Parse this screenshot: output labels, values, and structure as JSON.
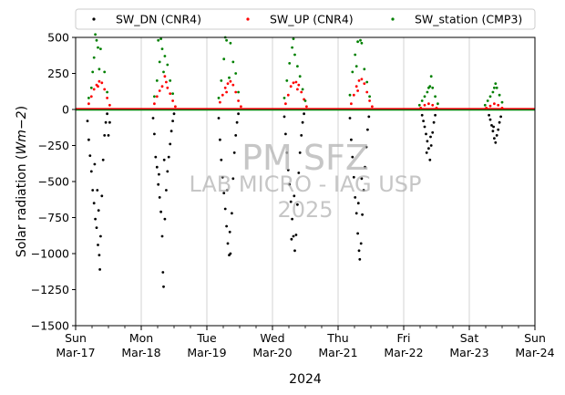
{
  "chart_data": {
    "type": "scatter",
    "title": "",
    "ylabel": "Solar radiation (Wm−2)",
    "ylabel_parts": {
      "main": "Solar radiation (",
      "unit": "Wm−2",
      "end": ")"
    },
    "xlabel": "2024",
    "ylim": [
      -1500,
      500
    ],
    "xlim": [
      0,
      7
    ],
    "y_ticks": [
      -1500,
      -1250,
      -1000,
      -750,
      -500,
      -250,
      0,
      250,
      500
    ],
    "y_tick_labels": [
      "−1500",
      "−1250",
      "−1000",
      "−750",
      "−500",
      "−250",
      "0",
      "250",
      "500"
    ],
    "x_tick_days": [
      0,
      1,
      2,
      3,
      4,
      5,
      6,
      7
    ],
    "x_tick_labels": [
      [
        "Sun",
        "Mar-17"
      ],
      [
        "Mon",
        "Mar-18"
      ],
      [
        "Tue",
        "Mar-19"
      ],
      [
        "Wed",
        "Mar-20"
      ],
      [
        "Thu",
        "Mar-21"
      ],
      [
        "Fri",
        "Mar-22"
      ],
      [
        "Sat",
        "Mar-23"
      ],
      [
        "Sun",
        "Mar-24"
      ]
    ],
    "vertical_grid": true,
    "zero_line": true,
    "legend_placement": "top, above plot",
    "series": [
      {
        "name": "SW_DN (CNR4)",
        "color": "#000000",
        "points": [
          [
            0.18,
            -80
          ],
          [
            0.2,
            -210
          ],
          [
            0.22,
            -320
          ],
          [
            0.24,
            -430
          ],
          [
            0.26,
            -560
          ],
          [
            0.28,
            -650
          ],
          [
            0.3,
            -760
          ],
          [
            0.32,
            -820
          ],
          [
            0.34,
            -940
          ],
          [
            0.36,
            -1010
          ],
          [
            0.37,
            -1110
          ],
          [
            0.38,
            -880
          ],
          [
            0.4,
            -600
          ],
          [
            0.42,
            -350
          ],
          [
            0.44,
            -180
          ],
          [
            0.46,
            -90
          ],
          [
            0.48,
            -30
          ],
          [
            0.5,
            -180
          ],
          [
            0.52,
            -90
          ],
          [
            0.35,
            -700
          ],
          [
            0.29,
            -380
          ],
          [
            0.33,
            -560
          ],
          [
            1.18,
            -60
          ],
          [
            1.2,
            -170
          ],
          [
            1.22,
            -330
          ],
          [
            1.24,
            -400
          ],
          [
            1.26,
            -520
          ],
          [
            1.28,
            -610
          ],
          [
            1.3,
            -710
          ],
          [
            1.32,
            -880
          ],
          [
            1.33,
            -1130
          ],
          [
            1.34,
            -1230
          ],
          [
            1.36,
            -760
          ],
          [
            1.38,
            -560
          ],
          [
            1.4,
            -430
          ],
          [
            1.42,
            -330
          ],
          [
            1.44,
            -240
          ],
          [
            1.46,
            -150
          ],
          [
            1.48,
            -80
          ],
          [
            1.5,
            -30
          ],
          [
            1.27,
            -450
          ],
          [
            1.35,
            -350
          ],
          [
            2.18,
            -60
          ],
          [
            2.2,
            -210
          ],
          [
            2.22,
            -350
          ],
          [
            2.24,
            -470
          ],
          [
            2.26,
            -580
          ],
          [
            2.28,
            -690
          ],
          [
            2.3,
            -810
          ],
          [
            2.32,
            -930
          ],
          [
            2.34,
            -1010
          ],
          [
            2.36,
            -1000
          ],
          [
            2.38,
            -720
          ],
          [
            2.4,
            -480
          ],
          [
            2.42,
            -300
          ],
          [
            2.44,
            -180
          ],
          [
            2.46,
            -90
          ],
          [
            2.48,
            -30
          ],
          [
            2.31,
            -560
          ],
          [
            2.35,
            -850
          ],
          [
            3.18,
            -50
          ],
          [
            3.2,
            -170
          ],
          [
            3.22,
            -300
          ],
          [
            3.24,
            -420
          ],
          [
            3.26,
            -520
          ],
          [
            3.28,
            -640
          ],
          [
            3.3,
            -760
          ],
          [
            3.32,
            -880
          ],
          [
            3.34,
            -980
          ],
          [
            3.36,
            -870
          ],
          [
            3.38,
            -660
          ],
          [
            3.4,
            -440
          ],
          [
            3.42,
            -300
          ],
          [
            3.44,
            -180
          ],
          [
            3.46,
            -90
          ],
          [
            3.48,
            -30
          ],
          [
            3.33,
            -600
          ],
          [
            3.29,
            -900
          ],
          [
            4.18,
            -60
          ],
          [
            4.2,
            -210
          ],
          [
            4.22,
            -330
          ],
          [
            4.24,
            -470
          ],
          [
            4.26,
            -610
          ],
          [
            4.28,
            -720
          ],
          [
            4.3,
            -860
          ],
          [
            4.32,
            -980
          ],
          [
            4.33,
            -1040
          ],
          [
            4.35,
            -930
          ],
          [
            4.37,
            -730
          ],
          [
            4.39,
            -560
          ],
          [
            4.41,
            -400
          ],
          [
            4.43,
            -260
          ],
          [
            4.45,
            -140
          ],
          [
            4.47,
            -50
          ],
          [
            4.31,
            -650
          ],
          [
            4.36,
            -480
          ],
          [
            5.28,
            -40
          ],
          [
            5.3,
            -80
          ],
          [
            5.32,
            -120
          ],
          [
            5.34,
            -170
          ],
          [
            5.36,
            -220
          ],
          [
            5.38,
            -270
          ],
          [
            5.4,
            -350
          ],
          [
            5.42,
            -250
          ],
          [
            5.44,
            -160
          ],
          [
            5.46,
            -90
          ],
          [
            5.48,
            -40
          ],
          [
            5.35,
            -300
          ],
          [
            5.41,
            -190
          ],
          [
            6.3,
            -40
          ],
          [
            6.32,
            -70
          ],
          [
            6.34,
            -110
          ],
          [
            6.36,
            -150
          ],
          [
            6.38,
            -200
          ],
          [
            6.4,
            -230
          ],
          [
            6.42,
            -180
          ],
          [
            6.44,
            -140
          ],
          [
            6.46,
            -90
          ],
          [
            6.48,
            -50
          ],
          [
            6.37,
            -120
          ]
        ]
      },
      {
        "name": "SW_UP (CNR4)",
        "color": "#ff0000",
        "points": [
          [
            0.2,
            40
          ],
          [
            0.24,
            90
          ],
          [
            0.28,
            140
          ],
          [
            0.32,
            170
          ],
          [
            0.36,
            195
          ],
          [
            0.4,
            185
          ],
          [
            0.44,
            140
          ],
          [
            0.48,
            80
          ],
          [
            0.52,
            30
          ],
          [
            0.34,
            160
          ],
          [
            1.2,
            40
          ],
          [
            1.24,
            90
          ],
          [
            1.28,
            130
          ],
          [
            1.32,
            160
          ],
          [
            1.36,
            230
          ],
          [
            1.4,
            150
          ],
          [
            1.44,
            110
          ],
          [
            1.48,
            60
          ],
          [
            1.52,
            20
          ],
          [
            1.38,
            190
          ],
          [
            2.2,
            50
          ],
          [
            2.24,
            100
          ],
          [
            2.28,
            150
          ],
          [
            2.32,
            180
          ],
          [
            2.36,
            195
          ],
          [
            2.4,
            170
          ],
          [
            2.44,
            120
          ],
          [
            2.48,
            60
          ],
          [
            2.52,
            20
          ],
          [
            2.3,
            120
          ],
          [
            3.2,
            40
          ],
          [
            3.24,
            100
          ],
          [
            3.28,
            160
          ],
          [
            3.32,
            185
          ],
          [
            3.36,
            190
          ],
          [
            3.4,
            170
          ],
          [
            3.44,
            120
          ],
          [
            3.48,
            70
          ],
          [
            3.52,
            20
          ],
          [
            3.38,
            140
          ],
          [
            4.2,
            40
          ],
          [
            4.24,
            100
          ],
          [
            4.28,
            160
          ],
          [
            4.32,
            200
          ],
          [
            4.36,
            210
          ],
          [
            4.4,
            180
          ],
          [
            4.44,
            120
          ],
          [
            4.48,
            60
          ],
          [
            4.52,
            20
          ],
          [
            4.3,
            130
          ],
          [
            5.26,
            10
          ],
          [
            5.32,
            30
          ],
          [
            5.38,
            40
          ],
          [
            5.44,
            30
          ],
          [
            5.5,
            10
          ],
          [
            6.26,
            10
          ],
          [
            6.32,
            25
          ],
          [
            6.38,
            40
          ],
          [
            6.44,
            30
          ],
          [
            6.5,
            10
          ]
        ]
      },
      {
        "name": "SW_station (CMP3)",
        "color": "#008000",
        "points": [
          [
            0.2,
            80
          ],
          [
            0.24,
            150
          ],
          [
            0.26,
            260
          ],
          [
            0.28,
            360
          ],
          [
            0.32,
            480
          ],
          [
            0.34,
            430
          ],
          [
            0.38,
            420
          ],
          [
            0.44,
            260
          ],
          [
            0.48,
            120
          ],
          [
            0.3,
            520
          ],
          [
            0.36,
            280
          ],
          [
            1.2,
            90
          ],
          [
            1.24,
            200
          ],
          [
            1.28,
            330
          ],
          [
            1.3,
            490
          ],
          [
            1.32,
            420
          ],
          [
            1.36,
            370
          ],
          [
            1.4,
            310
          ],
          [
            1.44,
            200
          ],
          [
            1.48,
            110
          ],
          [
            1.34,
            260
          ],
          [
            1.26,
            480
          ],
          [
            2.18,
            80
          ],
          [
            2.22,
            200
          ],
          [
            2.26,
            350
          ],
          [
            2.3,
            480
          ],
          [
            2.36,
            460
          ],
          [
            2.4,
            330
          ],
          [
            2.44,
            250
          ],
          [
            2.48,
            120
          ],
          [
            2.34,
            220
          ],
          [
            2.28,
            500
          ],
          [
            3.18,
            80
          ],
          [
            3.22,
            200
          ],
          [
            3.26,
            320
          ],
          [
            3.3,
            430
          ],
          [
            3.34,
            380
          ],
          [
            3.38,
            300
          ],
          [
            3.42,
            230
          ],
          [
            3.46,
            140
          ],
          [
            3.5,
            60
          ],
          [
            3.32,
            490
          ],
          [
            4.18,
            100
          ],
          [
            4.22,
            260
          ],
          [
            4.26,
            380
          ],
          [
            4.3,
            470
          ],
          [
            4.34,
            480
          ],
          [
            4.36,
            460
          ],
          [
            4.4,
            280
          ],
          [
            4.44,
            190
          ],
          [
            4.48,
            90
          ],
          [
            4.28,
            300
          ],
          [
            5.24,
            30
          ],
          [
            5.28,
            60
          ],
          [
            5.32,
            90
          ],
          [
            5.36,
            120
          ],
          [
            5.38,
            150
          ],
          [
            5.4,
            160
          ],
          [
            5.42,
            230
          ],
          [
            5.44,
            150
          ],
          [
            5.48,
            90
          ],
          [
            5.52,
            40
          ],
          [
            6.24,
            30
          ],
          [
            6.28,
            60
          ],
          [
            6.32,
            90
          ],
          [
            6.36,
            120
          ],
          [
            6.38,
            150
          ],
          [
            6.4,
            180
          ],
          [
            6.42,
            150
          ],
          [
            6.46,
            100
          ],
          [
            6.5,
            50
          ]
        ]
      }
    ]
  },
  "watermark": {
    "line1": "PM SFZ",
    "line2": "LAB MICRO - IAG USP",
    "line3": "2025"
  }
}
